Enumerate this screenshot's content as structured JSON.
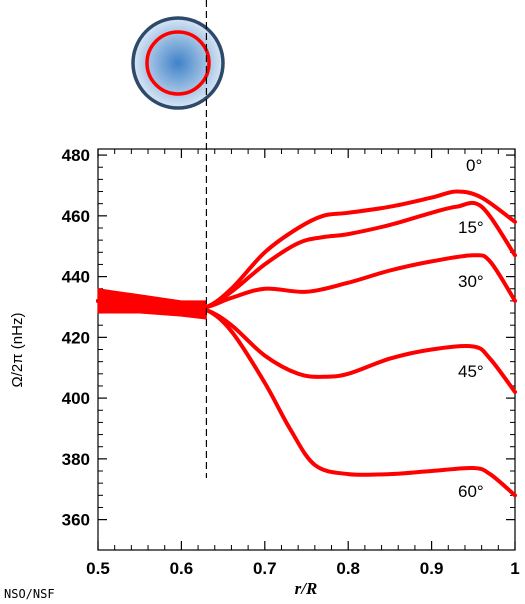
{
  "chart_data": {
    "type": "line",
    "xlabel": "r/R",
    "ylabel": "Ω/2π (nHz)",
    "xlim": [
      0.5,
      1.0
    ],
    "ylim": [
      350,
      482
    ],
    "xticks": [
      "0.5",
      "0.6",
      "0.7",
      "0.8",
      "0.9",
      "1"
    ],
    "yticks": [
      "360",
      "380",
      "400",
      "420",
      "440",
      "460",
      "480"
    ],
    "vline_x": 0.63,
    "series": [
      {
        "name": "0°",
        "x": [
          0.5,
          0.6,
          0.63,
          0.66,
          0.7,
          0.74,
          0.77,
          0.8,
          0.85,
          0.9,
          0.93,
          0.96,
          1.0
        ],
        "y": [
          432,
          430,
          430,
          436,
          448,
          456,
          460,
          461,
          463,
          466,
          468,
          466,
          458
        ],
        "width": 4
      },
      {
        "name": "15°",
        "x": [
          0.5,
          0.6,
          0.63,
          0.66,
          0.7,
          0.74,
          0.77,
          0.8,
          0.85,
          0.9,
          0.93,
          0.96,
          1.0
        ],
        "y": [
          432,
          430,
          430,
          435,
          444,
          451,
          453,
          454,
          457,
          461,
          463,
          463,
          447
        ],
        "width": 4
      },
      {
        "name": "30°",
        "x": [
          0.5,
          0.6,
          0.63,
          0.66,
          0.7,
          0.75,
          0.8,
          0.85,
          0.9,
          0.95,
          0.97,
          1.0
        ],
        "y": [
          432,
          430,
          430,
          433,
          436,
          435,
          438,
          442,
          445,
          447,
          445,
          432
        ],
        "width": 4
      },
      {
        "name": "45°",
        "x": [
          0.5,
          0.6,
          0.63,
          0.66,
          0.7,
          0.74,
          0.77,
          0.8,
          0.85,
          0.9,
          0.95,
          0.97,
          1.0
        ],
        "y": [
          432,
          430,
          429,
          424,
          414,
          408,
          407,
          408,
          413,
          416,
          417,
          413,
          402
        ],
        "width": 4
      },
      {
        "name": "60°",
        "x": [
          0.5,
          0.6,
          0.63,
          0.66,
          0.7,
          0.73,
          0.76,
          0.8,
          0.85,
          0.9,
          0.95,
          0.97,
          1.0
        ],
        "y": [
          432,
          430,
          429,
          422,
          405,
          390,
          378,
          375,
          375,
          376,
          377,
          375,
          368
        ],
        "width": 4
      }
    ],
    "band_series": {
      "x": [
        0.5,
        0.55,
        0.6,
        0.63
      ],
      "y_upper": [
        436,
        434,
        432,
        432
      ],
      "y_lower": [
        428,
        428,
        427,
        426
      ]
    },
    "line_color": "#ff0000",
    "sun_icon": {
      "outer_fill": "#3f82c8",
      "border": "#2d4a6b",
      "ring": "#ff0000"
    }
  },
  "labels": {
    "line_0": "0°",
    "line_15": "15°",
    "line_30": "30°",
    "line_45": "45°",
    "line_60": "60°",
    "credit": "NSO/NSF"
  }
}
